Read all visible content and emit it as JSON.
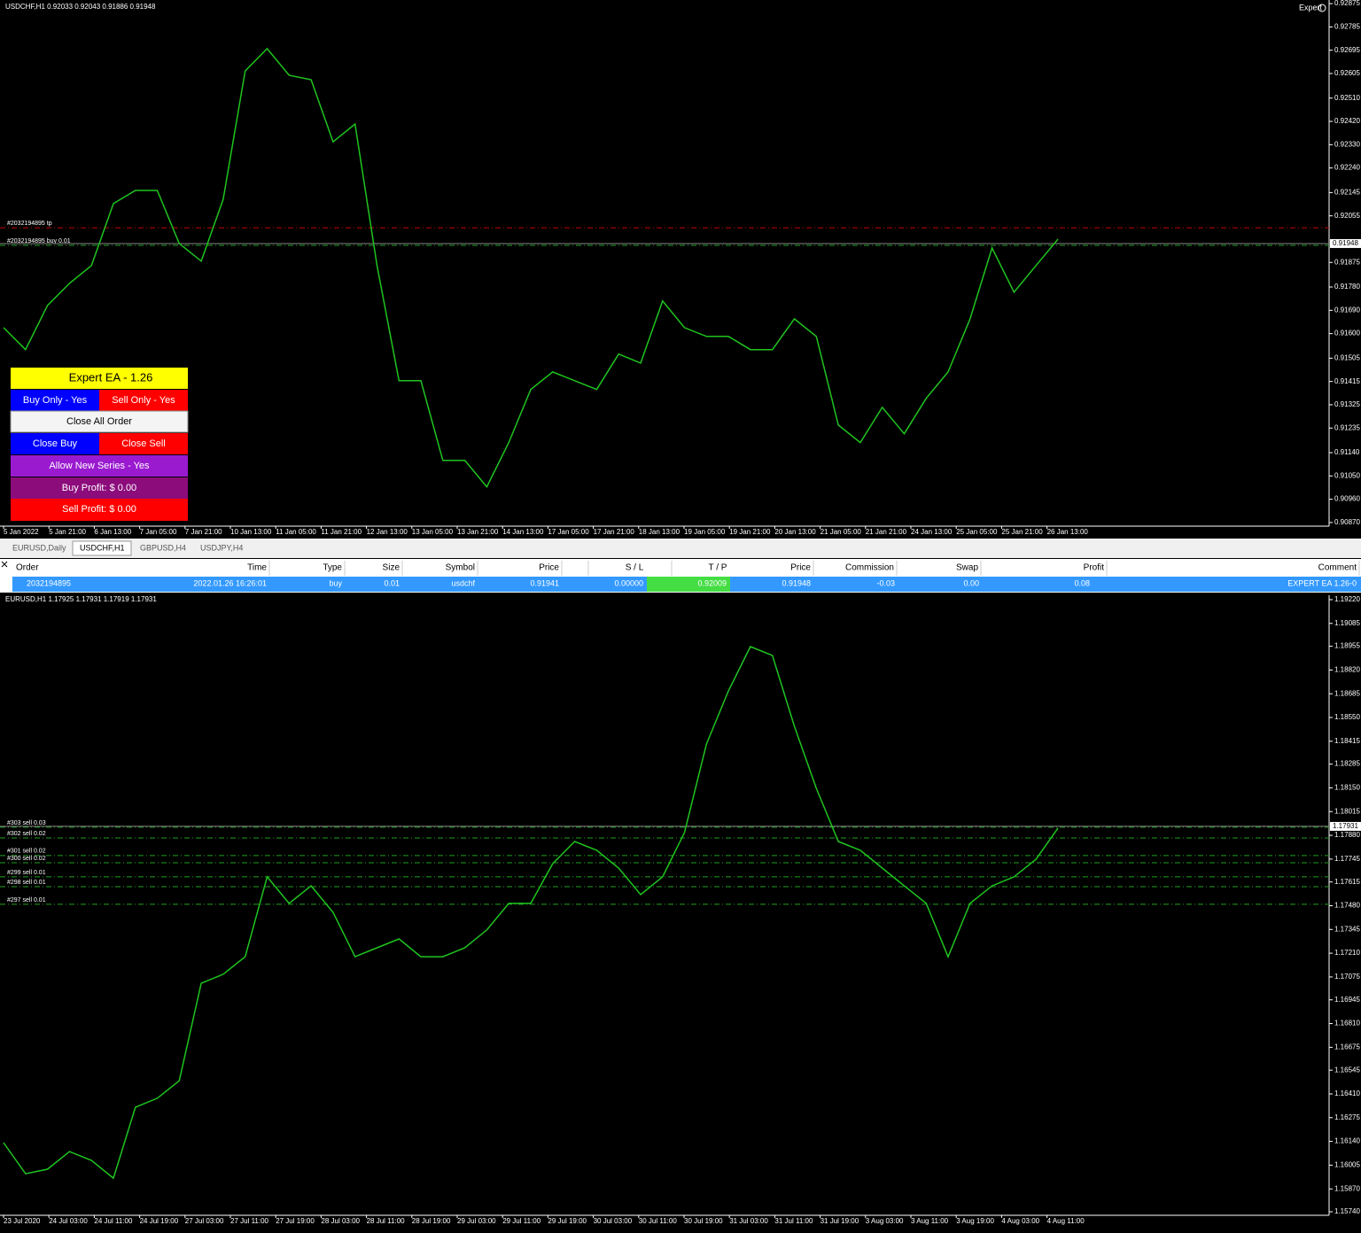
{
  "chart_data": [
    {
      "type": "line",
      "title": "USDCHF,H1  0.92033 0.92043 0.91886 0.91948",
      "color": "#1fc41f",
      "ylim": [
        0.90856,
        0.92889
      ],
      "yticks": [
        0.92875,
        0.92785,
        0.92695,
        0.92605,
        {
          "value": 0.9251,
          "label": "0.92510"
        },
        {
          "value": 0.9242,
          "label": "0.92420"
        },
        {
          "value": 0.9233,
          "label": "0.92330"
        },
        {
          "value": 0.9224,
          "label": "0.92240"
        },
        0.92145,
        0.92055,
        0.91875,
        {
          "value": 0.9178,
          "label": "0.91780"
        },
        {
          "value": 0.9169,
          "label": "0.91690"
        },
        {
          "value": 0.916,
          "label": "0.91600"
        },
        0.91505,
        0.91415,
        0.91325,
        0.91235,
        {
          "value": 0.9114,
          "label": "0.91140"
        },
        {
          "value": 0.9105,
          "label": "0.91050"
        },
        {
          "value": 0.9096,
          "label": "0.90960"
        },
        {
          "value": 0.9087,
          "label": "0.90870"
        }
      ],
      "x_labels": [
        "5 Jan 2022",
        "5 Jan 21:00",
        "6 Jan 13:00",
        "7 Jan 05:00",
        "7 Jan 21:00",
        "10 Jan 13:00",
        "11 Jan 05:00",
        "11 Jan 21:00",
        "12 Jan 13:00",
        "13 Jan 05:00",
        "13 Jan 21:00",
        "14 Jan 13:00",
        "17 Jan 05:00",
        "17 Jan 21:00",
        "18 Jan 13:00",
        "19 Jan 05:00",
        "19 Jan 21:00",
        "20 Jan 13:00",
        "21 Jan 05:00",
        "21 Jan 21:00",
        "24 Jan 13:00",
        "25 Jan 05:00",
        "25 Jan 21:00",
        "26 Jan 13:00"
      ],
      "values": [
        0.91623,
        0.91538,
        0.91709,
        0.91794,
        0.91863,
        0.92102,
        0.92153,
        0.92153,
        0.91948,
        0.9188,
        0.92119,
        0.92615,
        0.92701,
        0.92598,
        0.92581,
        0.92341,
        0.9241,
        0.91863,
        0.91418,
        0.91418,
        0.9111,
        0.9111,
        0.91008,
        0.91179,
        0.91384,
        0.91452,
        0.91418,
        0.91384,
        0.91521,
        0.91486,
        0.91726,
        0.91623,
        0.91589,
        0.91589,
        0.91538,
        0.91538,
        0.91657,
        0.91589,
        0.91247,
        0.91179,
        0.91315,
        0.91213,
        0.9135,
        0.91452,
        0.91657,
        0.91931,
        0.9176,
        0.91863,
        0.91965
      ],
      "current_price": {
        "value": 0.91948,
        "label": "0.91948"
      },
      "order_lines": [
        {
          "label": "#2032194895 tp",
          "price": 0.92009,
          "color": "#c00000"
        },
        {
          "label": "#2032194895 buy 0.01",
          "price": 0.91941,
          "color": "#1fa01f"
        }
      ]
    },
    {
      "type": "line",
      "title": "EURUSD,H1  1.17925 1.17931 1.17919 1.17931",
      "color": "#1fc41f",
      "ylim": [
        1.1572,
        1.19245
      ],
      "yticks": [
        {
          "value": 1.1922,
          "label": "1.19220"
        },
        1.19085,
        1.18955,
        {
          "value": 1.1882,
          "label": "1.18820"
        },
        1.18685,
        {
          "value": 1.1855,
          "label": "1.18550"
        },
        1.18415,
        1.18285,
        {
          "value": 1.1815,
          "label": "1.18150"
        },
        1.18015,
        {
          "value": 1.1788,
          "label": "1.17880"
        },
        1.17745,
        1.17615,
        {
          "value": 1.1748,
          "label": "1.17480"
        },
        1.17345,
        {
          "value": 1.1721,
          "label": "1.17210"
        },
        1.17075,
        1.16945,
        {
          "value": 1.1681,
          "label": "1.16810"
        },
        1.16675,
        1.16545,
        {
          "value": 1.1641,
          "label": "1.16410"
        },
        1.16275,
        {
          "value": 1.1614,
          "label": "1.16140"
        },
        1.16005,
        {
          "value": 1.1587,
          "label": "1.15870"
        },
        {
          "value": 1.1574,
          "label": "1.15740"
        }
      ],
      "x_labels": [
        "23 Jul 2020",
        "24 Jul 03:00",
        "24 Jul 11:00",
        "24 Jul 19:00",
        "27 Jul 03:00",
        "27 Jul 11:00",
        "27 Jul 19:00",
        "28 Jul 03:00",
        "28 Jul 11:00",
        "28 Jul 19:00",
        "29 Jul 03:00",
        "29 Jul 11:00",
        "29 Jul 19:00",
        "30 Jul 03:00",
        "30 Jul 11:00",
        "30 Jul 19:00",
        "31 Jul 03:00",
        "31 Jul 11:00",
        "31 Jul 19:00",
        "3 Aug 03:00",
        "3 Aug 11:00",
        "3 Aug 19:00",
        "4 Aug 03:00",
        "4 Aug 11:00"
      ],
      "values": [
        1.16133,
        1.15956,
        1.15982,
        1.16082,
        1.16032,
        1.15931,
        1.16334,
        1.16385,
        1.16485,
        1.17039,
        1.1709,
        1.1719,
        1.17644,
        1.17493,
        1.17593,
        1.17442,
        1.1719,
        1.17241,
        1.17291,
        1.1719,
        1.1719,
        1.17241,
        1.17342,
        1.17493,
        1.17493,
        1.17719,
        1.17845,
        1.17795,
        1.17694,
        1.17543,
        1.17644,
        1.17896,
        1.18399,
        1.18701,
        1.18953,
        1.18903,
        1.185,
        1.18147,
        1.17845,
        1.17795,
        1.17694,
        1.17593,
        1.17493,
        1.1719,
        1.17493,
        1.17593,
        1.17644,
        1.17744,
        1.17921
      ],
      "current_price": {
        "value": 1.17931,
        "label": "1.17931"
      },
      "order_lines": [
        {
          "label": "#303 sell 0.03",
          "price": 1.17926,
          "color": "#1fa01f"
        },
        {
          "label": "#302 sell 0.02",
          "price": 1.17865,
          "color": "#1fa01f"
        },
        {
          "label": "#301 sell 0.02",
          "price": 1.17765,
          "color": "#1fa01f"
        },
        {
          "label": "#300 sell 0.02",
          "price": 1.17724,
          "color": "#1fa01f"
        },
        {
          "label": "#299 sell 0.01",
          "price": 1.17644,
          "color": "#1fa01f"
        },
        {
          "label": "#298 sell 0.01",
          "price": 1.17588,
          "color": "#1fa01f"
        },
        {
          "label": "#297 sell 0.01",
          "price": 1.17488,
          "color": "#1fa01f"
        }
      ]
    }
  ],
  "expert_label": "Expert",
  "panel": {
    "title": "Expert EA - 1.26",
    "buy_only": "Buy Only - Yes",
    "sell_only": "Sell Only - Yes",
    "close_all": "Close All Order",
    "close_buy": "Close Buy",
    "close_sell": "Close Sell",
    "allow_new": "Allow New Series - Yes",
    "buy_profit": "Buy Profit: $ 0.00",
    "sell_profit": "Sell Profit: $ 0.00"
  },
  "tabs": [
    "EURUSD,Daily",
    "USDCHF,H1",
    "GBPUSD,H4",
    "USDJPY,H4"
  ],
  "table": {
    "headers": [
      "Order",
      "Time",
      "Type",
      "Size",
      "Symbol",
      "Price",
      "S / L",
      "T / P",
      "Price",
      "Commission",
      "Swap",
      "Profit",
      "Comment"
    ],
    "rows": [
      [
        "2032194895",
        "2022.01.26 16:26:01",
        "buy",
        "0.01",
        "usdchf",
        "0.91941",
        "0.00000",
        "0.92009",
        "0.91948",
        "-0.03",
        "0.00",
        "0.08",
        "EXPERT EA 1.26-0"
      ]
    ]
  }
}
